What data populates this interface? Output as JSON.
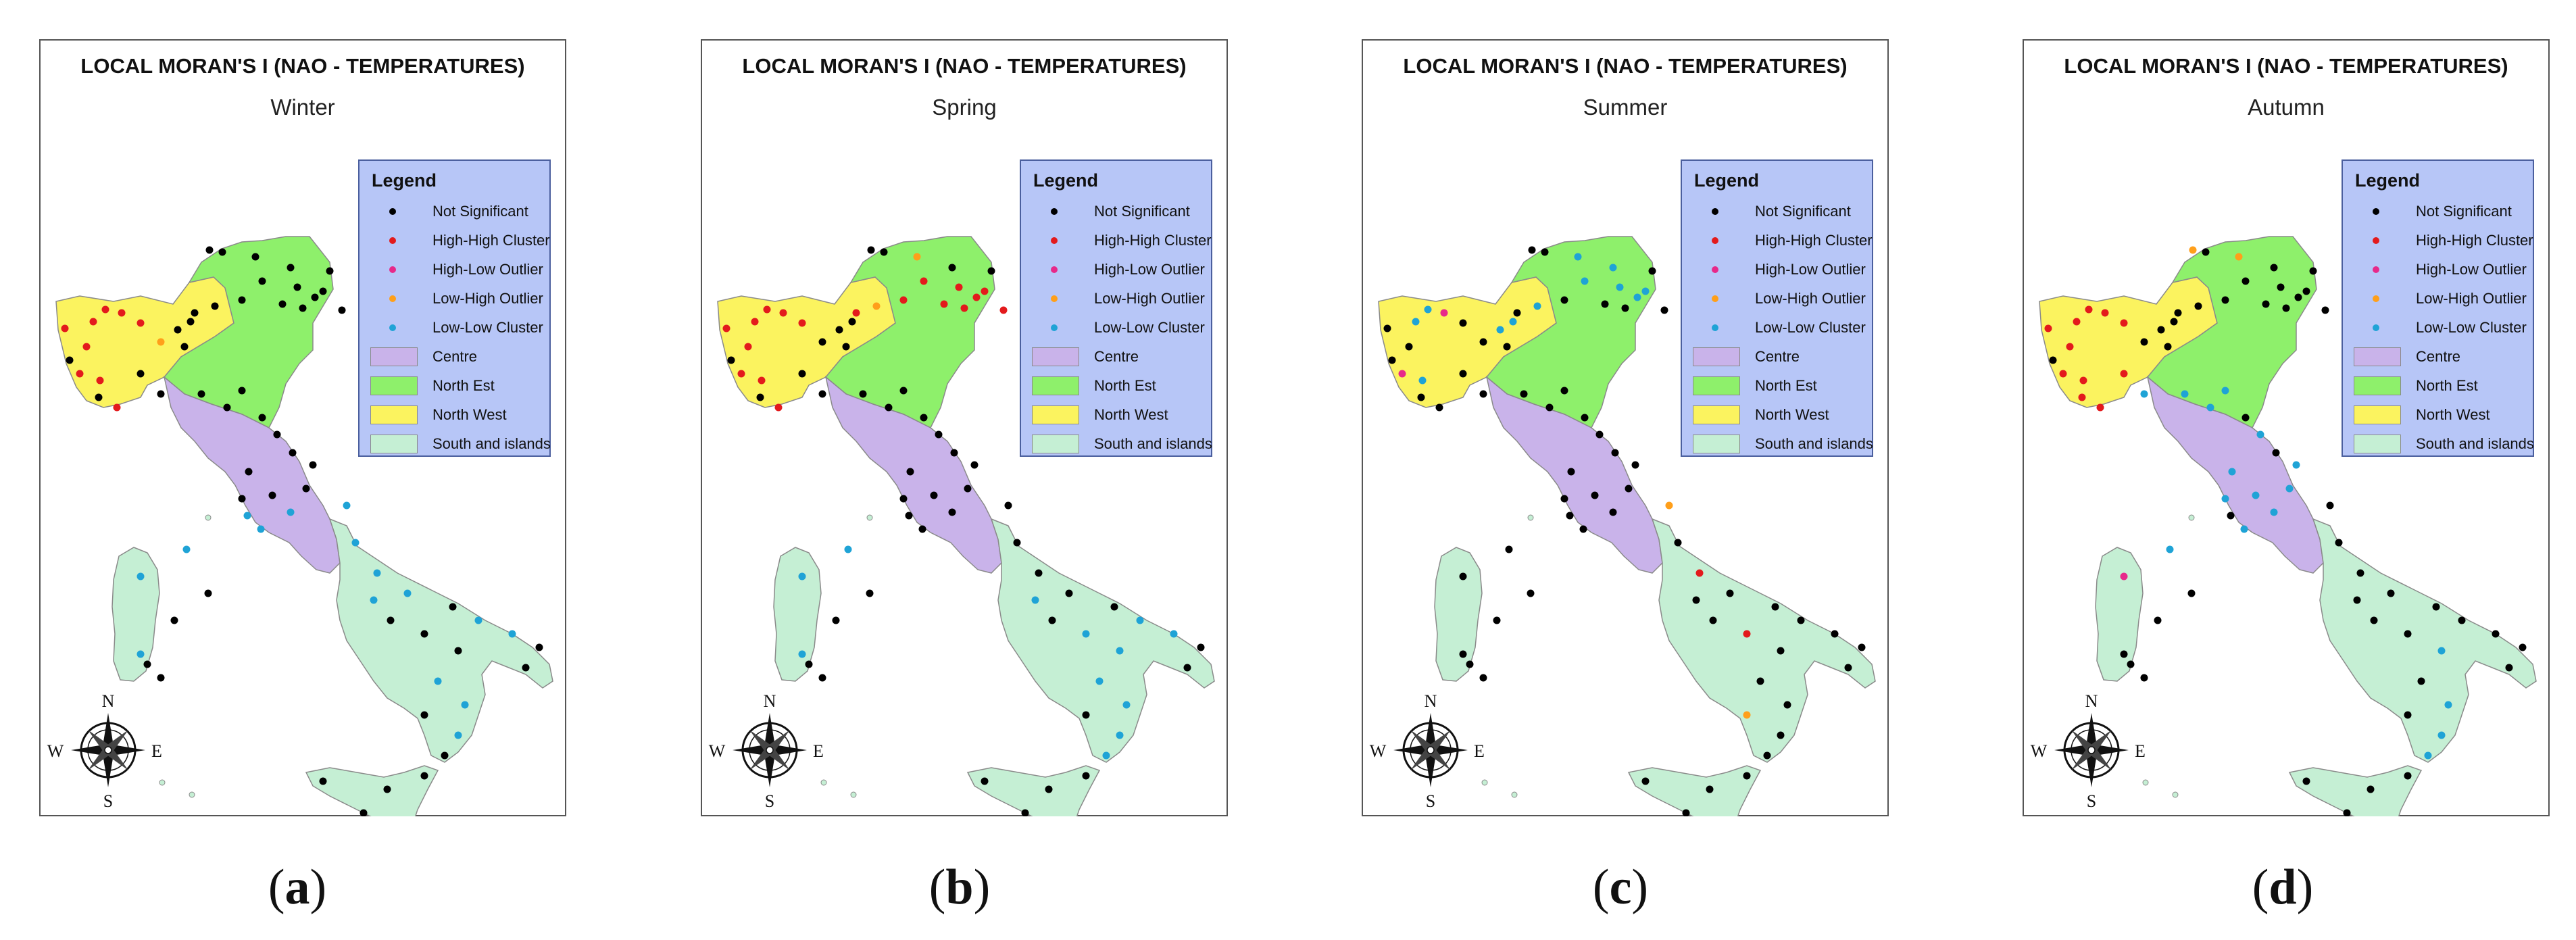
{
  "figure_title": "LOCAL MORAN'S I (NAO - TEMPERATURES)",
  "legend": {
    "title": "Legend",
    "points": [
      {
        "label": "Not Significant",
        "color": "#000000"
      },
      {
        "label": "High-High Cluster",
        "color": "#e31a1c"
      },
      {
        "label": "High-Low Outlier",
        "color": "#e7298a"
      },
      {
        "label": "Low-High Outlier",
        "color": "#ff9f1a"
      },
      {
        "label": "Low-Low Cluster",
        "color": "#1fa3d6"
      }
    ],
    "regions": [
      {
        "label": "Centre",
        "color": "#c9b3ea"
      },
      {
        "label": "North Est",
        "color": "#8ef06b"
      },
      {
        "label": "North West",
        "color": "#fbf35f"
      },
      {
        "label": "South and islands",
        "color": "#c5efd4"
      }
    ]
  },
  "compass": {
    "n": "N",
    "s": "S",
    "e": "E",
    "w": "W"
  },
  "panels": [
    {
      "season": "Winter",
      "caption": "a"
    },
    {
      "season": "Spring",
      "caption": "b"
    },
    {
      "season": "Summer",
      "caption": "c"
    },
    {
      "season": "Autumn",
      "caption": "d"
    }
  ]
}
